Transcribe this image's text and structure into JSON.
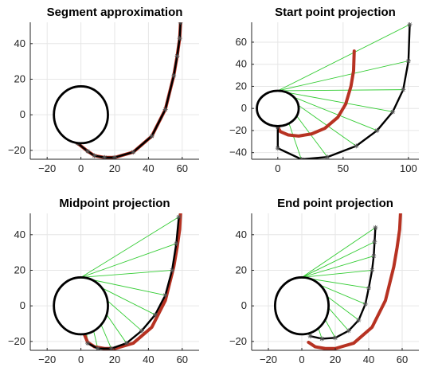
{
  "chart_data": [
    {
      "type": "line",
      "title": "Segment approximation",
      "xlabel": "",
      "ylabel": "",
      "xlim": [
        -30,
        70
      ],
      "ylim": [
        -25,
        52
      ],
      "xticks": [
        -20,
        0,
        20,
        40,
        60
      ],
      "yticks": [
        -20,
        0,
        20,
        40
      ],
      "grid": true,
      "circle": {
        "cx": 0,
        "cy": 0,
        "r": 16
      },
      "origin": [
        0,
        16
      ],
      "curve_x": [
        -2,
        4,
        8,
        14,
        20,
        31,
        42,
        50,
        55,
        57,
        58.5,
        59
      ],
      "curve_y": [
        -16,
        -20.5,
        -23,
        -24,
        -24,
        -21,
        -12,
        3,
        22,
        33,
        43,
        52
      ],
      "approx_x": [
        -2,
        4,
        8,
        14,
        20,
        31,
        42,
        50,
        55,
        57,
        58.5,
        59
      ],
      "approx_y": [
        -16,
        -20.5,
        -23,
        -24,
        -24,
        -21,
        -12,
        3,
        22,
        33,
        43,
        52
      ],
      "rays": false
    },
    {
      "type": "line",
      "title": "Start point projection",
      "xlabel": "",
      "ylabel": "",
      "xlim": [
        -20,
        108
      ],
      "ylim": [
        -46,
        78
      ],
      "xticks": [
        0,
        50,
        100
      ],
      "yticks": [
        -40,
        -20,
        0,
        20,
        40,
        60
      ],
      "grid": true,
      "circle": {
        "cx": 0,
        "cy": 0,
        "r": 16
      },
      "origin": [
        0,
        16
      ],
      "curve_x": [
        0,
        2,
        8,
        16,
        26,
        36,
        46,
        52,
        56,
        58,
        58.5
      ],
      "curve_y": [
        -17,
        -21,
        -24,
        -25,
        -23,
        -18,
        -8,
        4,
        20,
        34,
        52
      ],
      "approx_x": [
        0,
        0,
        18,
        38,
        60,
        76,
        88,
        96,
        100,
        101
      ],
      "approx_y": [
        -17,
        -36,
        -46,
        -44,
        -34,
        -20,
        -3,
        17,
        43,
        76
      ],
      "rays": true
    },
    {
      "type": "line",
      "title": "Midpoint projection",
      "xlabel": "",
      "ylabel": "",
      "xlim": [
        -30,
        70
      ],
      "ylim": [
        -25,
        52
      ],
      "xticks": [
        -20,
        0,
        20,
        40,
        60
      ],
      "yticks": [
        -20,
        0,
        20,
        40
      ],
      "grid": true,
      "circle": {
        "cx": 0,
        "cy": 0,
        "r": 16
      },
      "origin": [
        0,
        16
      ],
      "curve_x": [
        2,
        4,
        8,
        14,
        20,
        31,
        42,
        50,
        55,
        57,
        58.5,
        59
      ],
      "curve_y": [
        -16,
        -20.5,
        -23,
        -24,
        -24,
        -21,
        -12,
        3,
        22,
        33,
        43,
        52
      ],
      "approx_x": [
        4,
        10,
        18,
        27,
        36,
        44,
        50,
        54,
        56.5,
        58
      ],
      "approx_y": [
        -21,
        -24,
        -24,
        -21,
        -14,
        -5,
        6,
        20,
        35,
        50
      ],
      "rays": true
    },
    {
      "type": "line",
      "title": "End point projection",
      "xlabel": "",
      "ylabel": "",
      "xlim": [
        -30,
        70
      ],
      "ylim": [
        -25,
        52
      ],
      "xticks": [
        -20,
        0,
        20,
        40,
        60
      ],
      "yticks": [
        -20,
        0,
        20,
        40
      ],
      "grid": true,
      "circle": {
        "cx": 0,
        "cy": 0,
        "r": 16
      },
      "origin": [
        0,
        16
      ],
      "curve_x": [
        4,
        8,
        14,
        20,
        31,
        42,
        50,
        55,
        57,
        58.5,
        59
      ],
      "curve_y": [
        -20.5,
        -23,
        -24,
        -24,
        -21,
        -12,
        3,
        22,
        33,
        43,
        52
      ],
      "approx_x": [
        5,
        12,
        20,
        28,
        34,
        38,
        40,
        42,
        43,
        43.5,
        44
      ],
      "approx_y": [
        -17,
        -18.5,
        -18,
        -14,
        -8,
        1,
        10,
        20,
        28,
        36,
        44
      ],
      "rays": true
    }
  ]
}
